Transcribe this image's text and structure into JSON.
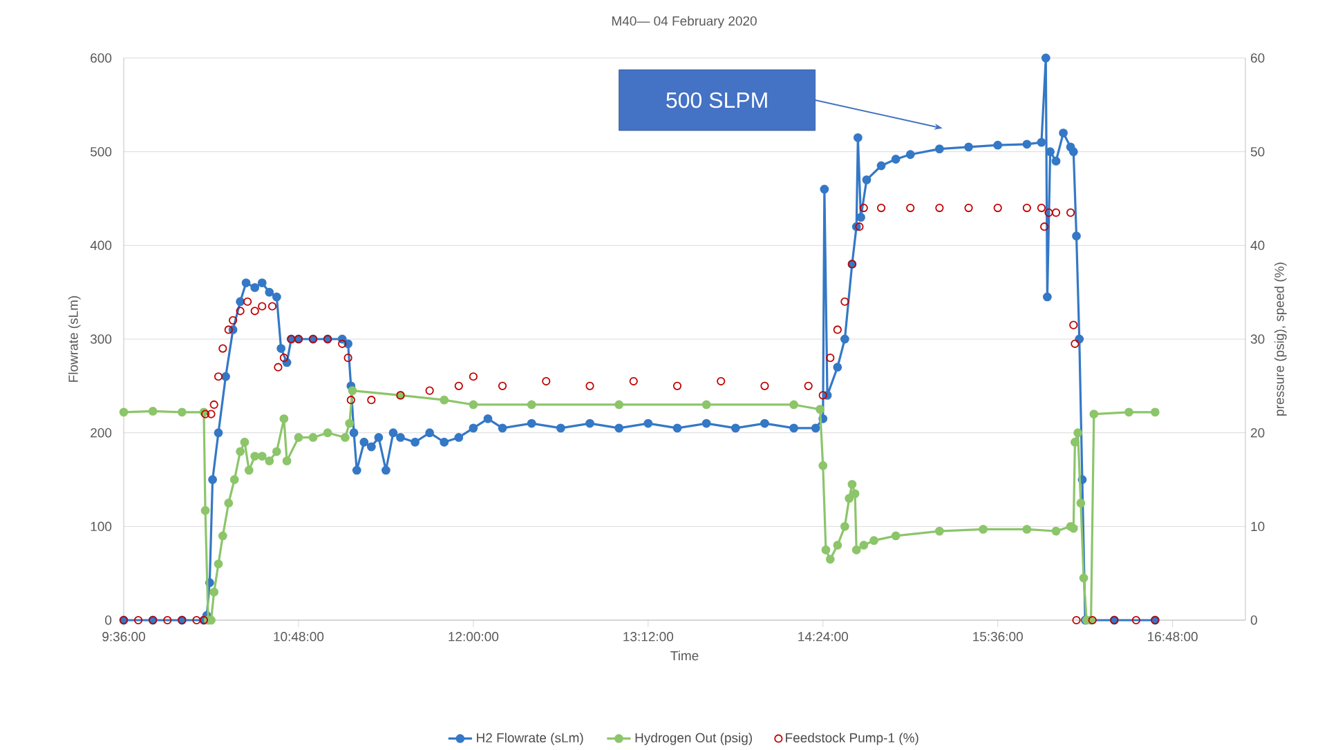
{
  "chart_data": {
    "type": "line",
    "title": "M40— 04 February 2020",
    "xlabel": "Time",
    "ylabel": "Flowrate (sLm)",
    "y2label": "pressure (psig), speed  (%)",
    "xlim": [
      9.6,
      17.3
    ],
    "xticks": [
      {
        "value": 9.6,
        "label": "9:36:00"
      },
      {
        "value": 10.8,
        "label": "10:48:00"
      },
      {
        "value": 12.0,
        "label": "12:00:00"
      },
      {
        "value": 13.2,
        "label": "13:12:00"
      },
      {
        "value": 14.4,
        "label": "14:24:00"
      },
      {
        "value": 15.6,
        "label": "15:36:00"
      },
      {
        "value": 16.8,
        "label": "16:48:00"
      }
    ],
    "ylim": [
      0,
      600
    ],
    "yticks": [
      0,
      100,
      200,
      300,
      400,
      500,
      600
    ],
    "y2lim": [
      0,
      60
    ],
    "y2ticks": [
      0,
      10,
      20,
      30,
      40,
      50,
      60
    ],
    "grid": "y",
    "legend": "bottom",
    "marker": "circle",
    "annotations": [
      "500 SLPM"
    ],
    "series": [
      {
        "name": "H2 Flowrate (sLm)",
        "color": "#3478c6",
        "x": [
          9.6,
          9.8,
          10.0,
          10.15,
          10.17,
          10.19,
          10.21,
          10.25,
          10.3,
          10.35,
          10.4,
          10.44,
          10.5,
          10.55,
          10.6,
          10.65,
          10.68,
          10.72,
          10.75,
          10.8,
          10.9,
          11.0,
          11.1,
          11.14,
          11.16,
          11.18,
          11.2,
          11.25,
          11.3,
          11.35,
          11.4,
          11.45,
          11.5,
          11.6,
          11.7,
          11.8,
          11.9,
          12.0,
          12.1,
          12.2,
          12.4,
          12.6,
          12.8,
          13.0,
          13.2,
          13.4,
          13.6,
          13.8,
          14.0,
          14.2,
          14.35,
          14.4,
          14.41,
          14.43,
          14.5,
          14.55,
          14.6,
          14.63,
          14.64,
          14.66,
          14.7,
          14.8,
          14.9,
          15.0,
          15.2,
          15.4,
          15.6,
          15.8,
          15.9,
          15.93,
          15.94,
          15.96,
          16.0,
          16.05,
          16.1,
          16.12,
          16.14,
          16.16,
          16.18,
          16.2,
          16.4,
          16.68
        ],
        "values": [
          0,
          0,
          0,
          0,
          5,
          40,
          150,
          200,
          260,
          310,
          340,
          360,
          355,
          360,
          350,
          345,
          290,
          275,
          300,
          300,
          300,
          300,
          300,
          295,
          250,
          200,
          160,
          190,
          185,
          195,
          160,
          200,
          195,
          190,
          200,
          190,
          195,
          205,
          215,
          205,
          210,
          205,
          210,
          205,
          210,
          205,
          210,
          205,
          210,
          205,
          205,
          215,
          460,
          240,
          270,
          300,
          380,
          420,
          515,
          430,
          470,
          485,
          492,
          497,
          503,
          505,
          507,
          508,
          510,
          600,
          345,
          500,
          490,
          520,
          505,
          500,
          410,
          300,
          150,
          0,
          0,
          0
        ]
      },
      {
        "name": "Hydrogen Out  (psig)",
        "color": "#8cc56a",
        "axis": "y2",
        "x": [
          9.6,
          9.8,
          10.0,
          10.15,
          10.16,
          10.18,
          10.2,
          10.22,
          10.25,
          10.28,
          10.32,
          10.36,
          10.4,
          10.43,
          10.46,
          10.5,
          10.55,
          10.6,
          10.65,
          10.7,
          10.72,
          10.8,
          10.9,
          11.0,
          11.12,
          11.15,
          11.17,
          11.5,
          11.8,
          12.0,
          12.4,
          13.0,
          13.6,
          14.2,
          14.38,
          14.4,
          14.42,
          14.45,
          14.5,
          14.55,
          14.58,
          14.6,
          14.62,
          14.63,
          14.68,
          14.75,
          14.9,
          15.2,
          15.5,
          15.8,
          16.0,
          16.1,
          16.12,
          16.13,
          16.15,
          16.17,
          16.19,
          16.21,
          16.24,
          16.26,
          16.5,
          16.68
        ],
        "values": [
          22.2,
          22.3,
          22.2,
          22.2,
          11.7,
          0,
          0,
          3,
          6,
          9,
          12.5,
          15,
          18,
          19,
          16,
          17.5,
          17.5,
          17,
          18,
          21.5,
          17,
          19.5,
          19.5,
          20,
          19.5,
          21,
          24.5,
          24,
          23.5,
          23,
          23,
          23,
          23,
          23,
          22.5,
          16.5,
          7.5,
          6.5,
          8,
          10,
          13,
          14.5,
          13.5,
          7.5,
          8,
          8.5,
          9,
          9.5,
          9.7,
          9.7,
          9.5,
          10,
          9.8,
          19,
          20,
          12.5,
          4.5,
          0,
          0,
          22,
          22.2,
          22.2
        ]
      },
      {
        "name": "Feedstock Pump-1 (%)",
        "color": "#c00000",
        "type": "scatter",
        "axis": "y2",
        "x": [
          9.6,
          9.7,
          9.8,
          9.9,
          10.0,
          10.1,
          10.15,
          10.16,
          10.2,
          10.22,
          10.25,
          10.28,
          10.32,
          10.35,
          10.4,
          10.45,
          10.5,
          10.55,
          10.62,
          10.66,
          10.7,
          10.75,
          10.8,
          10.9,
          11.0,
          11.1,
          11.14,
          11.16,
          11.3,
          11.5,
          11.7,
          11.9,
          12.0,
          12.2,
          12.5,
          12.8,
          13.1,
          13.4,
          13.7,
          14.0,
          14.3,
          14.4,
          14.45,
          14.5,
          14.55,
          14.6,
          14.65,
          14.68,
          14.8,
          15.0,
          15.2,
          15.4,
          15.6,
          15.8,
          15.9,
          15.92,
          15.95,
          16.0,
          16.1,
          16.12,
          16.13,
          16.14,
          16.25,
          16.4,
          16.55,
          16.68
        ],
        "values": [
          0,
          0,
          0,
          0,
          0,
          0,
          0,
          22,
          22,
          23,
          26,
          29,
          31,
          32,
          33,
          34,
          33,
          33.5,
          33.5,
          27,
          28,
          30,
          30,
          30,
          30,
          29.5,
          28,
          23.5,
          23.5,
          24,
          24.5,
          25,
          26,
          25,
          25.5,
          25,
          25.5,
          25,
          25.5,
          25,
          25,
          24,
          28,
          31,
          34,
          38,
          42,
          44,
          44,
          44,
          44,
          44,
          44,
          44,
          44,
          42,
          43.5,
          43.5,
          43.5,
          31.5,
          29.5,
          0,
          0,
          0,
          0,
          0
        ]
      }
    ]
  }
}
